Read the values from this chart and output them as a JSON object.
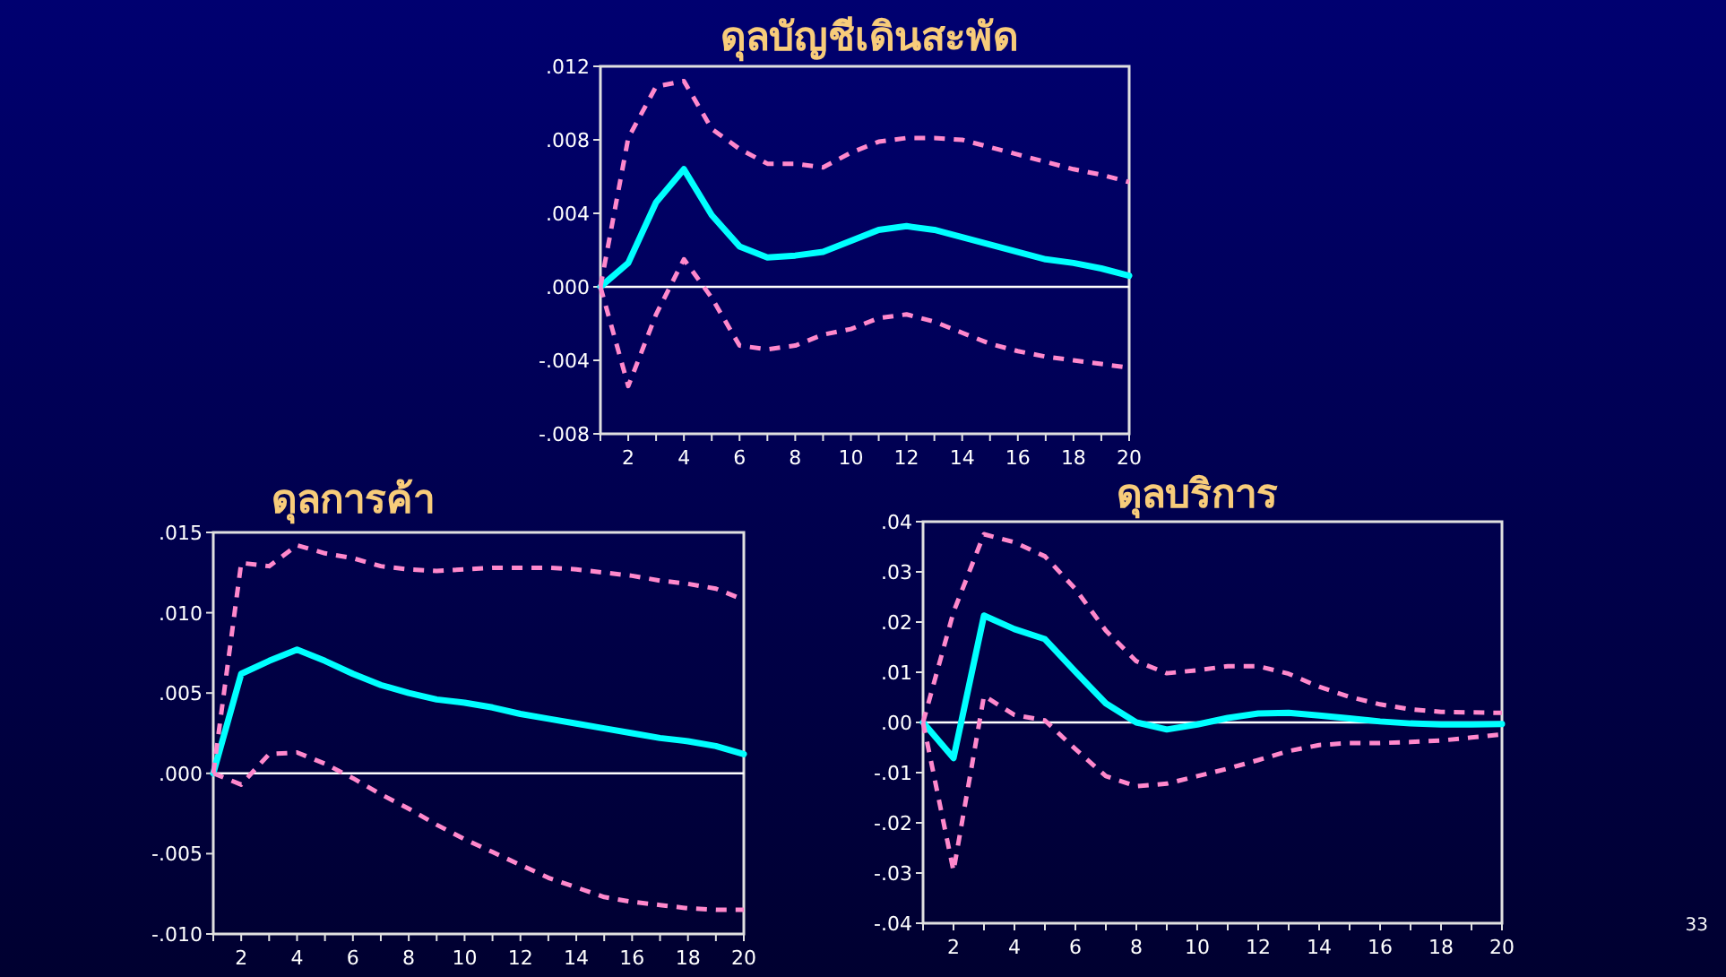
{
  "chart_data": [
    {
      "type": "line",
      "title": "ดุลบัญชีเดินสะพัด",
      "x": [
        1,
        2,
        3,
        4,
        5,
        6,
        7,
        8,
        9,
        10,
        11,
        12,
        13,
        14,
        15,
        16,
        17,
        18,
        19,
        20
      ],
      "series": [
        {
          "color": "#00ffff",
          "values": [
            0,
            0.0013,
            0.0046,
            0.0064,
            0.0039,
            0.0022,
            0.0016,
            0.0017,
            0.0019,
            0.0025,
            0.0031,
            0.0033,
            0.0031,
            0.0027,
            0.0023,
            0.0019,
            0.0015,
            0.0013,
            0.001,
            0.0006
          ]
        },
        {
          "color": "#ff88cc",
          "line_style": "dashed",
          "values": [
            0,
            0.0081,
            0.0109,
            0.0112,
            0.0086,
            0.0075,
            0.0067,
            0.0067,
            0.0065,
            0.0073,
            0.0079,
            0.0081,
            0.0081,
            0.008,
            0.0076,
            0.0072,
            0.0068,
            0.0064,
            0.0061,
            0.0057
          ]
        },
        {
          "color": "#ff88cc",
          "line_style": "dashed",
          "values": [
            0,
            -0.0054,
            -0.0015,
            0.0015,
            -0.0006,
            -0.0032,
            -0.0034,
            -0.0032,
            -0.0026,
            -0.0023,
            -0.0017,
            -0.0015,
            -0.0019,
            -0.0025,
            -0.0031,
            -0.0035,
            -0.0038,
            -0.004,
            -0.0042,
            -0.0044
          ]
        }
      ],
      "xlim": [
        1,
        20
      ],
      "xticks": [
        {
          "value": 1,
          "label": null
        },
        2,
        {
          "value": 3,
          "label": null
        },
        4,
        {
          "value": 5,
          "label": null
        },
        6,
        {
          "value": 7,
          "label": null
        },
        8,
        {
          "value": 9,
          "label": null
        },
        10,
        {
          "value": 11,
          "label": null
        },
        12,
        {
          "value": 13,
          "label": null
        },
        14,
        {
          "value": 15,
          "label": null
        },
        16,
        {
          "value": 17,
          "label": null
        },
        18,
        {
          "value": 19,
          "label": null
        },
        20
      ],
      "ylim": [
        -0.008,
        0.012
      ],
      "yticks": [
        {
          "value": -0.008,
          "label": "-.008"
        },
        {
          "value": -0.004,
          "label": "-.004"
        },
        {
          "value": 0,
          "label": ".000"
        },
        {
          "value": 0.004,
          "label": ".004"
        },
        {
          "value": 0.008,
          "label": ".008"
        },
        {
          "value": 0.012,
          "label": ".012"
        }
      ],
      "ref_lines": [
        {
          "axis": "y",
          "value": 0,
          "color": "#ffffff"
        }
      ]
    },
    {
      "type": "line",
      "title": "ดุลการค้า",
      "x": [
        1,
        2,
        3,
        4,
        5,
        6,
        7,
        8,
        9,
        10,
        11,
        12,
        13,
        14,
        15,
        16,
        17,
        18,
        19,
        20
      ],
      "series": [
        {
          "color": "#00ffff",
          "values": [
            0,
            0.0062,
            0.007,
            0.0077,
            0.007,
            0.0062,
            0.0055,
            0.005,
            0.0046,
            0.0044,
            0.0041,
            0.0037,
            0.0034,
            0.0031,
            0.0028,
            0.0025,
            0.0022,
            0.002,
            0.0017,
            0.0012
          ]
        },
        {
          "color": "#ff88cc",
          "line_style": "dashed",
          "values": [
            0,
            0.0131,
            0.0129,
            0.0142,
            0.0137,
            0.0134,
            0.0129,
            0.0127,
            0.0126,
            0.0127,
            0.0128,
            0.0128,
            0.0128,
            0.0127,
            0.0125,
            0.0123,
            0.012,
            0.0118,
            0.0115,
            0.0108
          ]
        },
        {
          "color": "#ff88cc",
          "line_style": "dashed",
          "values": [
            0,
            -0.0007,
            0.0012,
            0.0013,
            0.0006,
            -0.0003,
            -0.0013,
            -0.0022,
            -0.0032,
            -0.0041,
            -0.0049,
            -0.0057,
            -0.0065,
            -0.0071,
            -0.0077,
            -0.008,
            -0.0082,
            -0.0084,
            -0.0085,
            -0.0085
          ]
        }
      ],
      "xlim": [
        1,
        20
      ],
      "xticks": [
        {
          "value": 1,
          "label": null
        },
        2,
        {
          "value": 3,
          "label": null
        },
        4,
        {
          "value": 5,
          "label": null
        },
        6,
        {
          "value": 7,
          "label": null
        },
        8,
        {
          "value": 9,
          "label": null
        },
        10,
        {
          "value": 11,
          "label": null
        },
        12,
        {
          "value": 13,
          "label": null
        },
        14,
        {
          "value": 15,
          "label": null
        },
        16,
        {
          "value": 17,
          "label": null
        },
        18,
        {
          "value": 19,
          "label": null
        },
        20
      ],
      "ylim": [
        -0.01,
        0.015
      ],
      "yticks": [
        {
          "value": -0.01,
          "label": "-.010"
        },
        {
          "value": -0.005,
          "label": "-.005"
        },
        {
          "value": 0,
          "label": ".000"
        },
        {
          "value": 0.005,
          "label": ".005"
        },
        {
          "value": 0.01,
          "label": ".010"
        },
        {
          "value": 0.015,
          "label": ".015"
        }
      ],
      "ref_lines": [
        {
          "axis": "y",
          "value": 0,
          "color": "#ffffff"
        }
      ]
    },
    {
      "type": "line",
      "title": "ดุลบริการ",
      "x": [
        1,
        2,
        3,
        4,
        5,
        6,
        7,
        8,
        9,
        10,
        11,
        12,
        13,
        14,
        15,
        16,
        17,
        18,
        19,
        20
      ],
      "series": [
        {
          "color": "#00ffff",
          "values": [
            0,
            -0.0071,
            0.0213,
            0.0186,
            0.0166,
            0.0101,
            0.0038,
            0,
            -0.0014,
            -0.0004,
            0.0009,
            0.0018,
            0.0019,
            0.0014,
            0.0008,
            0.0002,
            -0.0002,
            -0.0004,
            -0.0004,
            -0.0003
          ]
        },
        {
          "color": "#ff88cc",
          "line_style": "dashed",
          "values": [
            0,
            0.022,
            0.0375,
            0.0359,
            0.0331,
            0.0266,
            0.0183,
            0.0122,
            0.0098,
            0.0104,
            0.0112,
            0.0112,
            0.0097,
            0.0071,
            0.0051,
            0.0036,
            0.0026,
            0.0021,
            0.002,
            0.0019
          ]
        },
        {
          "color": "#ff88cc",
          "line_style": "dashed",
          "values": [
            0,
            -0.0296,
            0.0053,
            0.0015,
            0.0004,
            -0.0053,
            -0.0107,
            -0.0127,
            -0.0122,
            -0.0107,
            -0.0092,
            -0.0075,
            -0.0057,
            -0.0045,
            -0.0041,
            -0.0041,
            -0.0039,
            -0.0036,
            -0.003,
            -0.0024
          ]
        }
      ],
      "xlim": [
        1,
        20
      ],
      "xticks": [
        {
          "value": 1,
          "label": null
        },
        2,
        {
          "value": 3,
          "label": null
        },
        4,
        {
          "value": 5,
          "label": null
        },
        6,
        {
          "value": 7,
          "label": null
        },
        8,
        {
          "value": 9,
          "label": null
        },
        10,
        {
          "value": 11,
          "label": null
        },
        12,
        {
          "value": 13,
          "label": null
        },
        14,
        {
          "value": 15,
          "label": null
        },
        16,
        {
          "value": 17,
          "label": null
        },
        18,
        {
          "value": 19,
          "label": null
        },
        20
      ],
      "ylim": [
        -0.04,
        0.04
      ],
      "yticks": [
        {
          "value": -0.04,
          "label": "-.04"
        },
        {
          "value": -0.03,
          "label": "-.03"
        },
        {
          "value": -0.02,
          "label": "-.02"
        },
        {
          "value": -0.01,
          "label": "-.01"
        },
        {
          "value": 0,
          "label": ".00"
        },
        {
          "value": 0.01,
          "label": ".01"
        },
        {
          "value": 0.02,
          "label": ".02"
        },
        {
          "value": 0.03,
          "label": ".03"
        },
        {
          "value": 0.04,
          "label": ".04"
        }
      ],
      "ref_lines": [
        {
          "axis": "y",
          "value": 0,
          "color": "#ffffff"
        }
      ],
      "annotations": [
        "33"
      ]
    }
  ]
}
